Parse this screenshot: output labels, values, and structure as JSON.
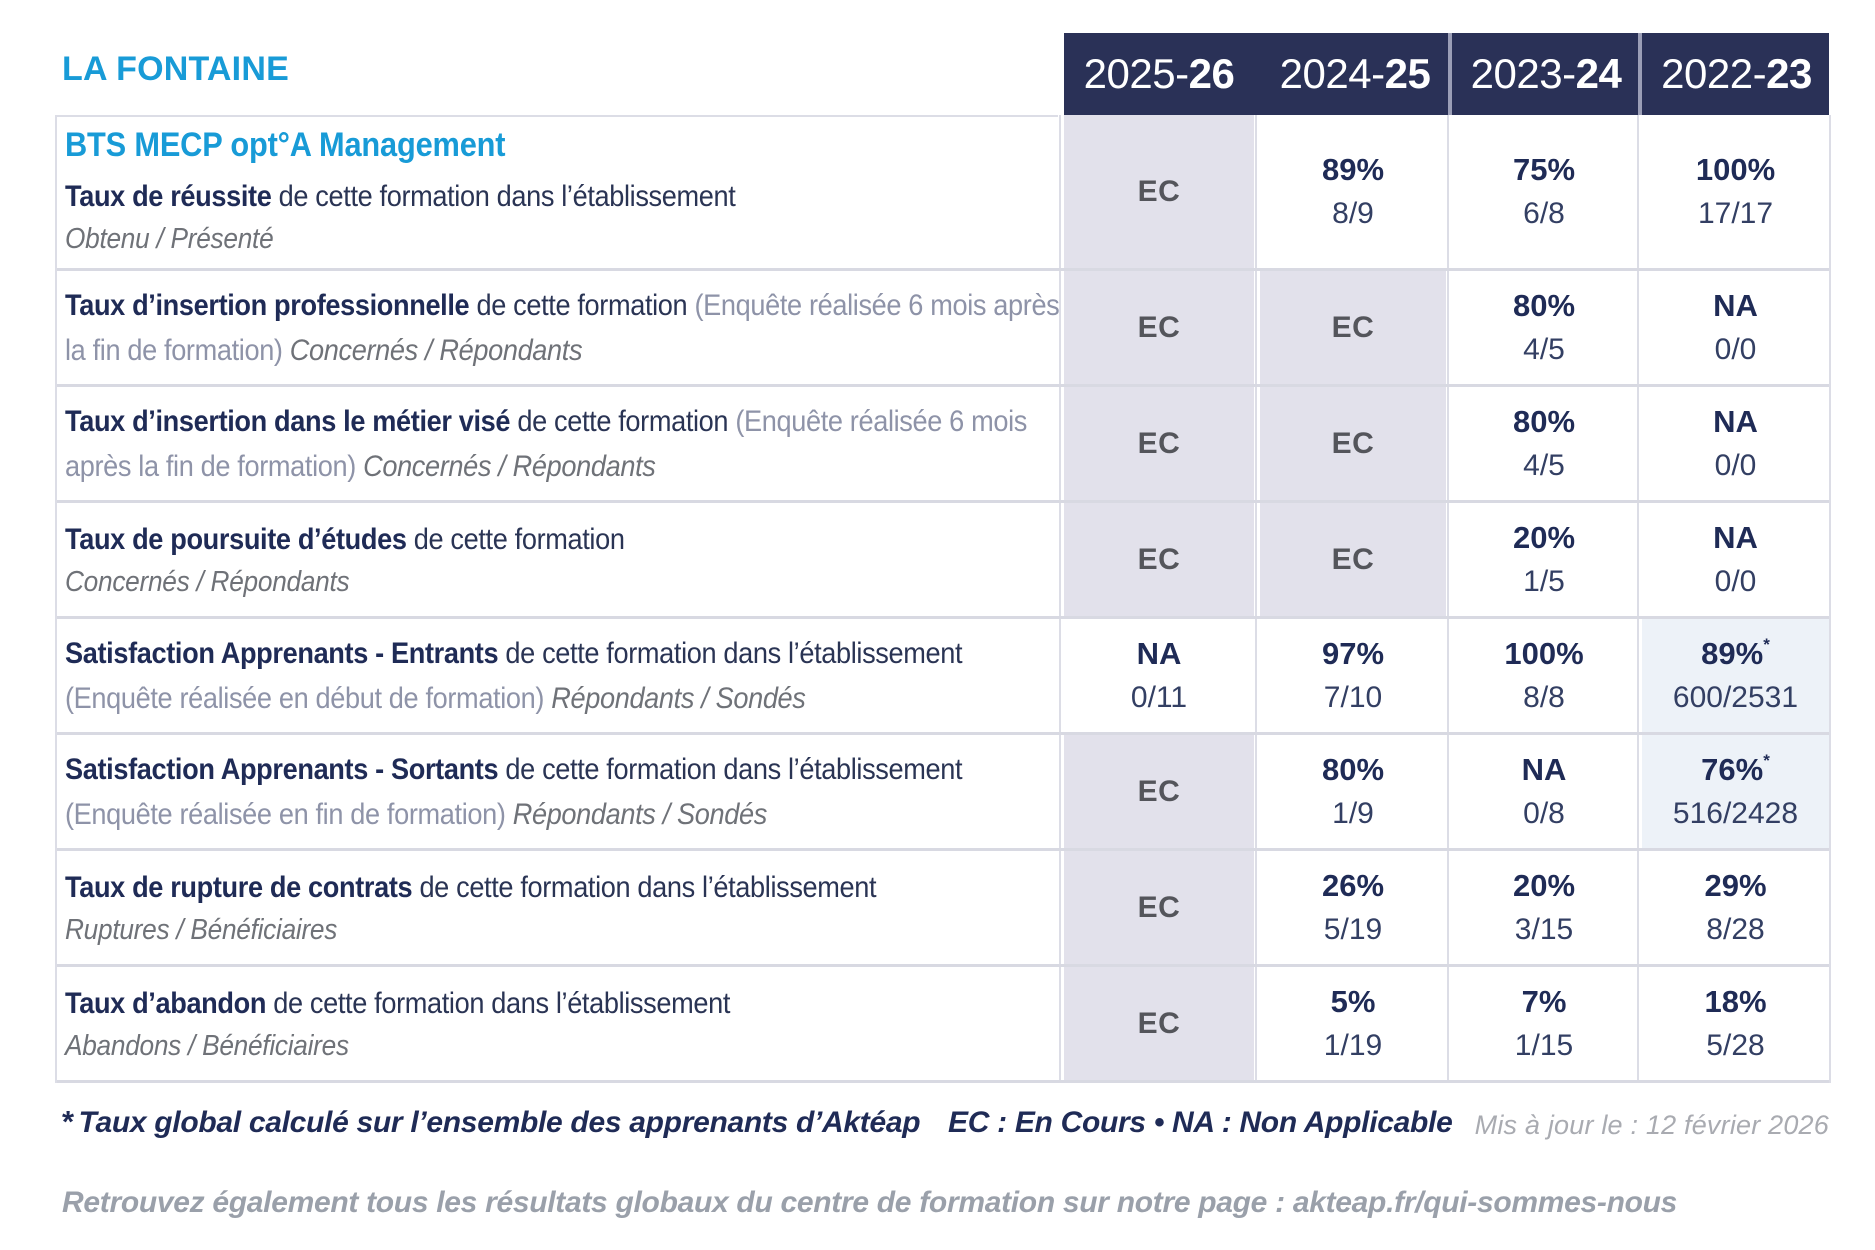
{
  "brand": "LA FONTAINE",
  "program_title": "BTS MECP opt°A Management",
  "columns": [
    {
      "prefix": "2025-",
      "bold": "26"
    },
    {
      "prefix": "2024-",
      "bold": "25"
    },
    {
      "prefix": "2023-",
      "bold": "24"
    },
    {
      "prefix": "2022-",
      "bold": "23"
    }
  ],
  "rows": [
    {
      "bold": "Taux de réussite",
      "rest": "de cette formation dans l’établissement",
      "sub": "Obtenu / Présenté",
      "cells": [
        {
          "v": "EC"
        },
        {
          "v": "89%",
          "f": "8/9"
        },
        {
          "v": "75%",
          "f": "6/8"
        },
        {
          "v": "100%",
          "f": "17/17"
        }
      ]
    },
    {
      "bold": "Taux d’insertion professionnelle",
      "rest": "de cette formation",
      "paren": "(Enquête réalisée 6 mois après la fin de formation)",
      "sub": "Concernés / Répondants",
      "cells": [
        {
          "v": "EC"
        },
        {
          "v": "EC"
        },
        {
          "v": "80%",
          "f": "4/5"
        },
        {
          "v": "NA",
          "f": "0/0"
        }
      ]
    },
    {
      "bold": "Taux d’insertion dans le métier visé",
      "rest": "de cette formation",
      "paren": "(Enquête réalisée 6 mois après la fin de formation)",
      "sub": "Concernés / Répondants",
      "cells": [
        {
          "v": "EC"
        },
        {
          "v": "EC"
        },
        {
          "v": "80%",
          "f": "4/5"
        },
        {
          "v": "NA",
          "f": "0/0"
        }
      ]
    },
    {
      "bold": "Taux de poursuite d’études",
      "rest": "de cette formation",
      "sub": "Concernés / Répondants",
      "cells": [
        {
          "v": "EC"
        },
        {
          "v": "EC"
        },
        {
          "v": "20%",
          "f": "1/5"
        },
        {
          "v": "NA",
          "f": "0/0"
        }
      ]
    },
    {
      "bold": "Satisfaction Apprenants - Entrants",
      "rest": "de cette formation dans l’établissement",
      "paren": "(Enquête réalisée en début de formation)",
      "sub": "Répondants / Sondés",
      "cells": [
        {
          "v": "NA",
          "f": "0/11"
        },
        {
          "v": "97%",
          "f": "7/10"
        },
        {
          "v": "100%",
          "f": "8/8"
        },
        {
          "v": "89%",
          "f": "600/2531",
          "star": "*"
        }
      ]
    },
    {
      "bold": "Satisfaction Apprenants - Sortants",
      "rest": "de cette formation dans l’établissement",
      "paren": "(Enquête réalisée en fin de formation)",
      "sub": "Répondants / Sondés",
      "cells": [
        {
          "v": "EC"
        },
        {
          "v": "80%",
          "f": "1/9"
        },
        {
          "v": "NA",
          "f": "0/8"
        },
        {
          "v": "76%",
          "f": "516/2428",
          "star": "*"
        }
      ]
    },
    {
      "bold": "Taux de rupture de contrats",
      "rest": "de cette formation dans l’établissement",
      "sub": "Ruptures / Bénéficiaires",
      "cells": [
        {
          "v": "EC"
        },
        {
          "v": "26%",
          "f": "5/19"
        },
        {
          "v": "20%",
          "f": "3/15"
        },
        {
          "v": "29%",
          "f": "8/28"
        }
      ]
    },
    {
      "bold": "Taux d’abandon",
      "rest": "de cette formation dans l’établissement",
      "sub": "Abandons / Bénéficiaires",
      "cells": [
        {
          "v": "EC"
        },
        {
          "v": "5%",
          "f": "1/19"
        },
        {
          "v": "7%",
          "f": "1/15"
        },
        {
          "v": "18%",
          "f": "5/28"
        }
      ]
    }
  ],
  "footnote": {
    "star": "*",
    "text": "Taux global calculé sur l’ensemble des apprenants d’Aktéap",
    "legend": "EC : En Cours  •  NA : Non Applicable",
    "updated": "Mis à jour le : 12 février 2026"
  },
  "bottom_note": "Retrouvez également tous les résultats globaux du centre de formation sur notre page : akteap.fr/qui-sommes-nous",
  "colors": {
    "accent_blue": "#189bd7",
    "header_navy": "#2a3157",
    "value_navy": "#1f2b56",
    "ec_cell_bg": "#e2e1eb",
    "highlight_cell_bg": "#edf2f8",
    "separator": "#d8d9e2"
  }
}
